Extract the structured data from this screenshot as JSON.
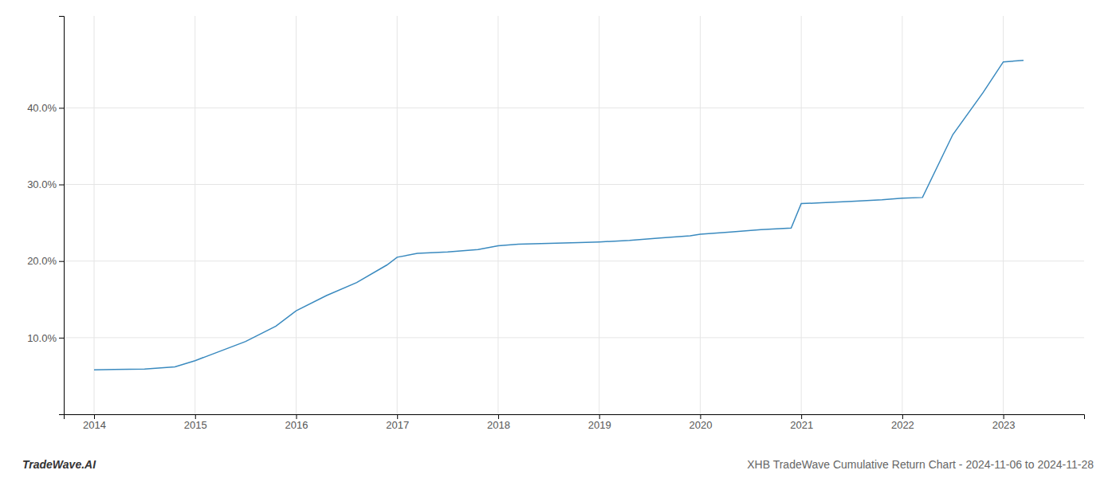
{
  "chart_data": {
    "type": "line",
    "title": "XHB TradeWave Cumulative Return Chart - 2024-11-06 to 2024-11-28",
    "annotations": [
      "TradeWave.AI"
    ],
    "color": "#3a8abf",
    "x": [
      2014.0,
      2014.2,
      2014.5,
      2014.8,
      2015.0,
      2015.2,
      2015.5,
      2015.8,
      2016.0,
      2016.3,
      2016.6,
      2016.9,
      2017.0,
      2017.2,
      2017.5,
      2017.8,
      2018.0,
      2018.2,
      2018.5,
      2018.8,
      2019.0,
      2019.3,
      2019.6,
      2019.9,
      2020.0,
      2020.3,
      2020.6,
      2020.9,
      2021.0,
      2021.2,
      2021.5,
      2021.8,
      2022.0,
      2022.2,
      2022.5,
      2022.8,
      2023.0,
      2023.2
    ],
    "values": [
      5.8,
      5.85,
      5.9,
      6.2,
      7.0,
      8.0,
      9.5,
      11.5,
      13.5,
      15.5,
      17.2,
      19.5,
      20.5,
      21.0,
      21.2,
      21.5,
      22.0,
      22.2,
      22.3,
      22.4,
      22.5,
      22.7,
      23.0,
      23.3,
      23.5,
      23.8,
      24.1,
      24.3,
      27.5,
      27.6,
      27.8,
      28.0,
      28.2,
      28.3,
      36.5,
      42.0,
      46.0,
      46.2
    ],
    "xlim": [
      2013.7,
      2023.8
    ],
    "xticks": [
      2014,
      2015,
      2016,
      2017,
      2018,
      2019,
      2020,
      2021,
      2022,
      2023
    ],
    "ylim": [
      0,
      52
    ],
    "yticks": [
      {
        "value": 10.0,
        "label": "10.0%"
      },
      {
        "value": 20.0,
        "label": "20.0%"
      },
      {
        "value": 30.0,
        "label": "30.0%"
      },
      {
        "value": 40.0,
        "label": "40.0%"
      }
    ],
    "grid": true
  }
}
